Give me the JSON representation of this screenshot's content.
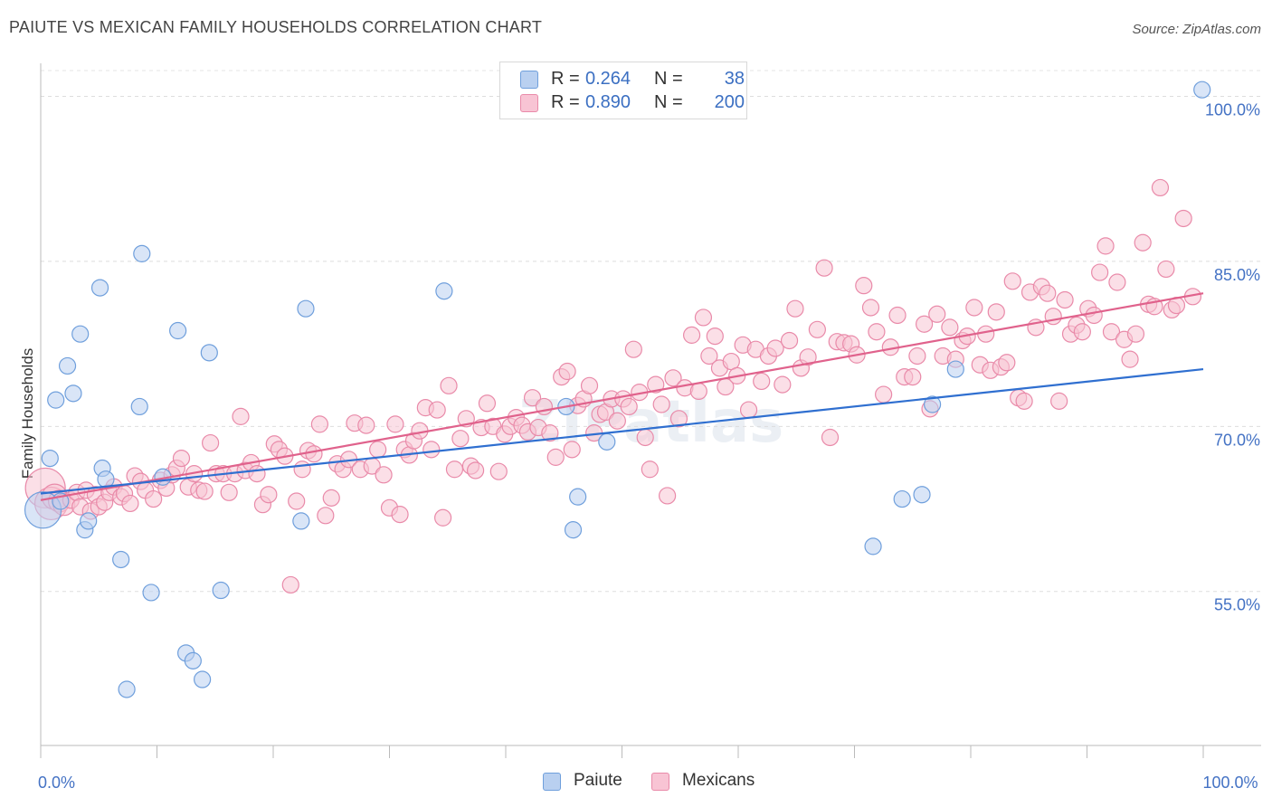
{
  "title": "PAIUTE VS MEXICAN FAMILY HOUSEHOLDS CORRELATION CHART",
  "source": "Source: ZipAtlas.com",
  "watermark": "ZIPatlas",
  "legend": {
    "series": [
      {
        "name": "Paiute",
        "r_label": "R =",
        "r_value": "0.264",
        "n_label": "N =",
        "n_value": "38"
      },
      {
        "name": "Mexicans",
        "r_label": "R =",
        "r_value": "0.890",
        "n_label": "N =",
        "n_value": "200"
      }
    ]
  },
  "colors": {
    "paiute_fill": "#b9d0f0",
    "paiute_stroke": "#6f9fdc",
    "paiute_line": "#2f6fd0",
    "mexicans_fill": "#f8c4d4",
    "mexicans_stroke": "#e98aa9",
    "mexicans_line": "#e0628c",
    "tick_label": "#4472c4"
  },
  "chart_data": {
    "type": "scatter",
    "title": "PAIUTE VS MEXICAN FAMILY HOUSEHOLDS CORRELATION CHART",
    "xlabel": "",
    "ylabel": "Family Households",
    "xlim": [
      0,
      100
    ],
    "ylim": [
      41,
      103
    ],
    "x_tick_labels": [
      {
        "value": 0,
        "label": "0.0%"
      },
      {
        "value": 100,
        "label": "100.0%"
      }
    ],
    "y_tick_labels": [
      {
        "value": 55,
        "label": "55.0%"
      },
      {
        "value": 70,
        "label": "70.0%"
      },
      {
        "value": 85,
        "label": "85.0%"
      },
      {
        "value": 100,
        "label": "100.0%"
      }
    ],
    "grid": true,
    "legend_position": "top-center",
    "series": [
      {
        "name": "Paiute",
        "trend": {
          "x": [
            0,
            100
          ],
          "y": [
            63.9,
            75.2
          ]
        },
        "points": [
          [
            0.2,
            62.4,
            20
          ],
          [
            0.8,
            67.1,
            9
          ],
          [
            1.3,
            72.4,
            9
          ],
          [
            1.7,
            63.2,
            9
          ],
          [
            2.3,
            75.5,
            9
          ],
          [
            2.8,
            73.0,
            9
          ],
          [
            3.4,
            78.4,
            9
          ],
          [
            3.8,
            60.6,
            9
          ],
          [
            4.1,
            61.4,
            9
          ],
          [
            5.1,
            82.6,
            9
          ],
          [
            5.3,
            66.2,
            9
          ],
          [
            5.6,
            65.2,
            9
          ],
          [
            6.9,
            57.9,
            9
          ],
          [
            7.4,
            46.1,
            9
          ],
          [
            8.5,
            71.8,
            9
          ],
          [
            8.7,
            85.7,
            9
          ],
          [
            9.5,
            54.9,
            9
          ],
          [
            10.5,
            65.4,
            9
          ],
          [
            11.8,
            78.7,
            9
          ],
          [
            12.5,
            49.4,
            9
          ],
          [
            13.1,
            48.7,
            9
          ],
          [
            13.9,
            47.0,
            9
          ],
          [
            14.5,
            76.7,
            9
          ],
          [
            15.5,
            55.1,
            9
          ],
          [
            22.4,
            61.4,
            9
          ],
          [
            22.8,
            80.7,
            9
          ],
          [
            34.7,
            82.3,
            9
          ],
          [
            45.2,
            71.8,
            9
          ],
          [
            45.8,
            60.6,
            9
          ],
          [
            46.2,
            63.6,
            9
          ],
          [
            48.7,
            68.6,
            9
          ],
          [
            71.6,
            59.1,
            9
          ],
          [
            74.1,
            63.4,
            9
          ],
          [
            75.8,
            63.8,
            9
          ],
          [
            76.7,
            72.0,
            9
          ],
          [
            78.7,
            75.2,
            9
          ],
          [
            99.9,
            100.6,
            9
          ]
        ]
      },
      {
        "name": "Mexicans",
        "trend": {
          "x": [
            0,
            100
          ],
          "y": [
            63.3,
            82.1
          ]
        },
        "points": [
          [
            0.4,
            64.4,
            22
          ],
          [
            0.9,
            63.0,
            18
          ],
          [
            1.2,
            63.6,
            14
          ],
          [
            1.6,
            63.2,
            12
          ],
          [
            2.0,
            62.9,
            12
          ],
          [
            2.6,
            63.3,
            9
          ],
          [
            3.1,
            64.0,
            9
          ],
          [
            3.4,
            62.7,
            9
          ],
          [
            3.9,
            64.2,
            9
          ],
          [
            4.3,
            62.3,
            9
          ],
          [
            4.7,
            63.8,
            9
          ],
          [
            5.0,
            62.7,
            9
          ],
          [
            5.5,
            63.1,
            9
          ],
          [
            5.9,
            64.0,
            9
          ],
          [
            6.3,
            64.5,
            9
          ],
          [
            6.9,
            63.6,
            9
          ],
          [
            7.2,
            63.9,
            9
          ],
          [
            7.7,
            63.0,
            9
          ],
          [
            8.1,
            65.5,
            9
          ],
          [
            8.6,
            65.0,
            9
          ],
          [
            9.0,
            64.2,
            9
          ],
          [
            9.7,
            63.4,
            9
          ],
          [
            10.3,
            65.1,
            9
          ],
          [
            10.8,
            64.4,
            9
          ],
          [
            11.3,
            65.6,
            9
          ],
          [
            11.7,
            66.2,
            9
          ],
          [
            12.1,
            67.1,
            9
          ],
          [
            12.7,
            64.5,
            9
          ],
          [
            13.2,
            65.7,
            9
          ],
          [
            13.6,
            64.2,
            9
          ],
          [
            14.1,
            64.1,
            9
          ],
          [
            14.6,
            68.5,
            9
          ],
          [
            15.1,
            65.7,
            9
          ],
          [
            15.7,
            65.7,
            9
          ],
          [
            16.2,
            64.0,
            9
          ],
          [
            16.7,
            65.7,
            9
          ],
          [
            17.2,
            70.9,
            9
          ],
          [
            17.6,
            66.0,
            9
          ],
          [
            18.1,
            66.7,
            9
          ],
          [
            18.6,
            65.7,
            9
          ],
          [
            19.1,
            62.9,
            9
          ],
          [
            19.6,
            63.8,
            9
          ],
          [
            20.1,
            68.4,
            9
          ],
          [
            20.5,
            67.9,
            9
          ],
          [
            21.0,
            67.3,
            9
          ],
          [
            21.5,
            55.6,
            9
          ],
          [
            22.0,
            63.2,
            9
          ],
          [
            22.5,
            66.1,
            9
          ],
          [
            23.0,
            67.8,
            9
          ],
          [
            23.5,
            67.5,
            9
          ],
          [
            24.0,
            70.2,
            9
          ],
          [
            24.5,
            61.9,
            9
          ],
          [
            25.0,
            63.5,
            9
          ],
          [
            25.5,
            66.6,
            9
          ],
          [
            26.0,
            66.1,
            9
          ],
          [
            26.5,
            67.0,
            9
          ],
          [
            27.0,
            70.3,
            9
          ],
          [
            27.5,
            66.1,
            9
          ],
          [
            28.0,
            70.1,
            9
          ],
          [
            28.5,
            66.4,
            9
          ],
          [
            29.0,
            67.9,
            9
          ],
          [
            29.5,
            65.6,
            9
          ],
          [
            30.0,
            62.6,
            9
          ],
          [
            30.5,
            70.2,
            9
          ],
          [
            30.9,
            62.0,
            9
          ],
          [
            31.3,
            67.9,
            9
          ],
          [
            31.7,
            67.4,
            9
          ],
          [
            32.1,
            68.7,
            9
          ],
          [
            32.6,
            69.6,
            9
          ],
          [
            33.1,
            71.7,
            9
          ],
          [
            33.6,
            67.9,
            9
          ],
          [
            34.1,
            71.5,
            9
          ],
          [
            34.6,
            61.7,
            9
          ],
          [
            35.1,
            73.7,
            9
          ],
          [
            35.6,
            66.1,
            9
          ],
          [
            36.1,
            68.9,
            9
          ],
          [
            36.6,
            70.7,
            9
          ],
          [
            37.0,
            66.4,
            9
          ],
          [
            37.4,
            66.0,
            9
          ],
          [
            37.9,
            69.9,
            9
          ],
          [
            38.4,
            72.1,
            9
          ],
          [
            38.9,
            70.0,
            9
          ],
          [
            39.4,
            65.9,
            9
          ],
          [
            39.9,
            69.3,
            9
          ],
          [
            40.4,
            70.0,
            9
          ],
          [
            40.9,
            70.8,
            9
          ],
          [
            41.4,
            70.1,
            9
          ],
          [
            41.9,
            69.5,
            9
          ],
          [
            42.3,
            72.6,
            9
          ],
          [
            42.8,
            69.9,
            9
          ],
          [
            43.3,
            71.8,
            9
          ],
          [
            43.8,
            69.4,
            9
          ],
          [
            44.3,
            67.2,
            9
          ],
          [
            44.8,
            74.5,
            9
          ],
          [
            45.3,
            75.0,
            9
          ],
          [
            45.7,
            67.9,
            9
          ],
          [
            46.2,
            71.9,
            9
          ],
          [
            46.7,
            72.5,
            9
          ],
          [
            47.2,
            73.7,
            9
          ],
          [
            47.6,
            69.4,
            9
          ],
          [
            48.1,
            71.1,
            9
          ],
          [
            48.6,
            71.3,
            9
          ],
          [
            49.1,
            72.5,
            9
          ],
          [
            49.6,
            70.5,
            9
          ],
          [
            50.1,
            72.5,
            9
          ],
          [
            50.6,
            71.8,
            9
          ],
          [
            51.0,
            77.0,
            9
          ],
          [
            51.5,
            73.1,
            9
          ],
          [
            52.0,
            69.0,
            9
          ],
          [
            52.4,
            66.1,
            9
          ],
          [
            52.9,
            73.8,
            9
          ],
          [
            53.4,
            72.0,
            9
          ],
          [
            53.9,
            63.7,
            9
          ],
          [
            54.4,
            74.4,
            9
          ],
          [
            54.9,
            70.7,
            9
          ],
          [
            55.4,
            73.5,
            9
          ],
          [
            56.0,
            78.3,
            9
          ],
          [
            56.6,
            73.2,
            9
          ],
          [
            57.0,
            79.9,
            9
          ],
          [
            57.5,
            76.4,
            9
          ],
          [
            58.0,
            78.2,
            9
          ],
          [
            58.4,
            75.3,
            9
          ],
          [
            58.9,
            73.6,
            9
          ],
          [
            59.4,
            75.9,
            9
          ],
          [
            59.9,
            74.6,
            9
          ],
          [
            60.4,
            77.4,
            9
          ],
          [
            60.9,
            71.5,
            9
          ],
          [
            61.5,
            77.0,
            9
          ],
          [
            62.0,
            74.1,
            9
          ],
          [
            62.6,
            76.4,
            9
          ],
          [
            63.2,
            77.1,
            9
          ],
          [
            63.8,
            73.8,
            9
          ],
          [
            64.4,
            77.8,
            9
          ],
          [
            64.9,
            80.7,
            9
          ],
          [
            65.4,
            75.3,
            9
          ],
          [
            66.0,
            76.3,
            9
          ],
          [
            66.8,
            78.8,
            9
          ],
          [
            67.4,
            84.4,
            9
          ],
          [
            67.9,
            69.0,
            9
          ],
          [
            68.5,
            77.7,
            9
          ],
          [
            69.1,
            77.6,
            9
          ],
          [
            69.7,
            77.5,
            9
          ],
          [
            70.2,
            76.5,
            9
          ],
          [
            70.8,
            82.8,
            9
          ],
          [
            71.4,
            80.8,
            9
          ],
          [
            71.9,
            78.6,
            9
          ],
          [
            72.5,
            72.9,
            9
          ],
          [
            73.1,
            77.2,
            9
          ],
          [
            73.7,
            80.1,
            9
          ],
          [
            74.3,
            74.5,
            9
          ],
          [
            75.0,
            74.5,
            9
          ],
          [
            75.4,
            76.4,
            9
          ],
          [
            76.0,
            79.3,
            9
          ],
          [
            76.5,
            71.6,
            9
          ],
          [
            77.1,
            80.2,
            9
          ],
          [
            77.6,
            76.4,
            9
          ],
          [
            78.2,
            79.0,
            9
          ],
          [
            78.7,
            76.1,
            9
          ],
          [
            79.3,
            77.8,
            9
          ],
          [
            79.7,
            78.2,
            9
          ],
          [
            80.3,
            80.8,
            9
          ],
          [
            80.8,
            75.6,
            9
          ],
          [
            81.3,
            78.4,
            9
          ],
          [
            81.7,
            75.1,
            9
          ],
          [
            82.2,
            80.4,
            9
          ],
          [
            82.6,
            75.4,
            9
          ],
          [
            83.1,
            75.8,
            9
          ],
          [
            83.6,
            83.2,
            9
          ],
          [
            84.1,
            72.6,
            9
          ],
          [
            84.6,
            72.3,
            9
          ],
          [
            85.1,
            82.2,
            9
          ],
          [
            85.6,
            79.0,
            9
          ],
          [
            86.1,
            82.7,
            9
          ],
          [
            86.6,
            82.1,
            9
          ],
          [
            87.1,
            80.0,
            9
          ],
          [
            87.6,
            72.3,
            9
          ],
          [
            88.1,
            81.5,
            9
          ],
          [
            88.6,
            78.4,
            9
          ],
          [
            89.1,
            79.2,
            9
          ],
          [
            89.6,
            78.6,
            9
          ],
          [
            90.1,
            80.7,
            9
          ],
          [
            90.6,
            80.1,
            9
          ],
          [
            91.1,
            84.0,
            9
          ],
          [
            91.6,
            86.4,
            9
          ],
          [
            92.1,
            78.6,
            9
          ],
          [
            92.6,
            83.1,
            9
          ],
          [
            93.2,
            77.9,
            9
          ],
          [
            93.7,
            76.1,
            9
          ],
          [
            94.2,
            78.4,
            9
          ],
          [
            94.8,
            86.7,
            9
          ],
          [
            95.3,
            81.1,
            9
          ],
          [
            95.8,
            80.9,
            9
          ],
          [
            96.3,
            91.7,
            9
          ],
          [
            96.8,
            84.3,
            9
          ],
          [
            97.3,
            80.6,
            9
          ],
          [
            97.7,
            81.0,
            9
          ],
          [
            98.3,
            88.9,
            9
          ],
          [
            99.1,
            81.8,
            9
          ]
        ]
      }
    ]
  }
}
